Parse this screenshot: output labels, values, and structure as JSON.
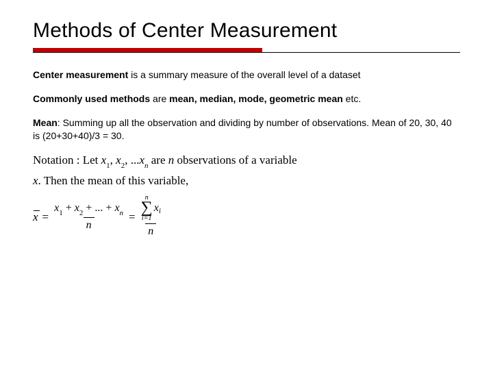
{
  "title": "Methods of Center Measurement",
  "underline": {
    "thick_color": "#c00000",
    "thin_color": "#000000"
  },
  "p1": {
    "bold": "Center measurement",
    "rest": " is a summary measure of the overall level of a dataset"
  },
  "p2": {
    "lead": "Commonly used methods",
    "mid": " are ",
    "bold2": "mean, median, mode, geometric mean",
    "tail": " etc."
  },
  "p3": {
    "bold": "Mean",
    "rest": ": Summing up all the observation and dividing by number of observations. Mean of 20, 30, 40 is (20+30+40)/3 = 30."
  },
  "formula": {
    "line1_a": "Notation : Let ",
    "line1_x1": "x",
    "line1_s1": "1",
    "line1_c1": ", ",
    "line1_x2": "x",
    "line1_s2": "2",
    "line1_c2": ", ...",
    "line1_xn": "x",
    "line1_sn": "n",
    "line1_b": " are ",
    "line1_n": "n",
    "line1_c": " observations of a variable",
    "line2": "x. Then the mean of this variable,",
    "eq": {
      "xbar": "x",
      "equals": "=",
      "num1_a": "x",
      "num1_s1": "1",
      "num1_p1": " + ",
      "num1_b": "x",
      "num1_s2": "2",
      "num1_p2": " + ... + ",
      "num1_c": "x",
      "num1_sn": "n",
      "den1": "n",
      "eq2": "=",
      "sig_top": "n",
      "sig_sym": "∑",
      "sig_bot": "i=1",
      "sig_x": "x",
      "sig_xi": "i",
      "den2": "n"
    }
  }
}
